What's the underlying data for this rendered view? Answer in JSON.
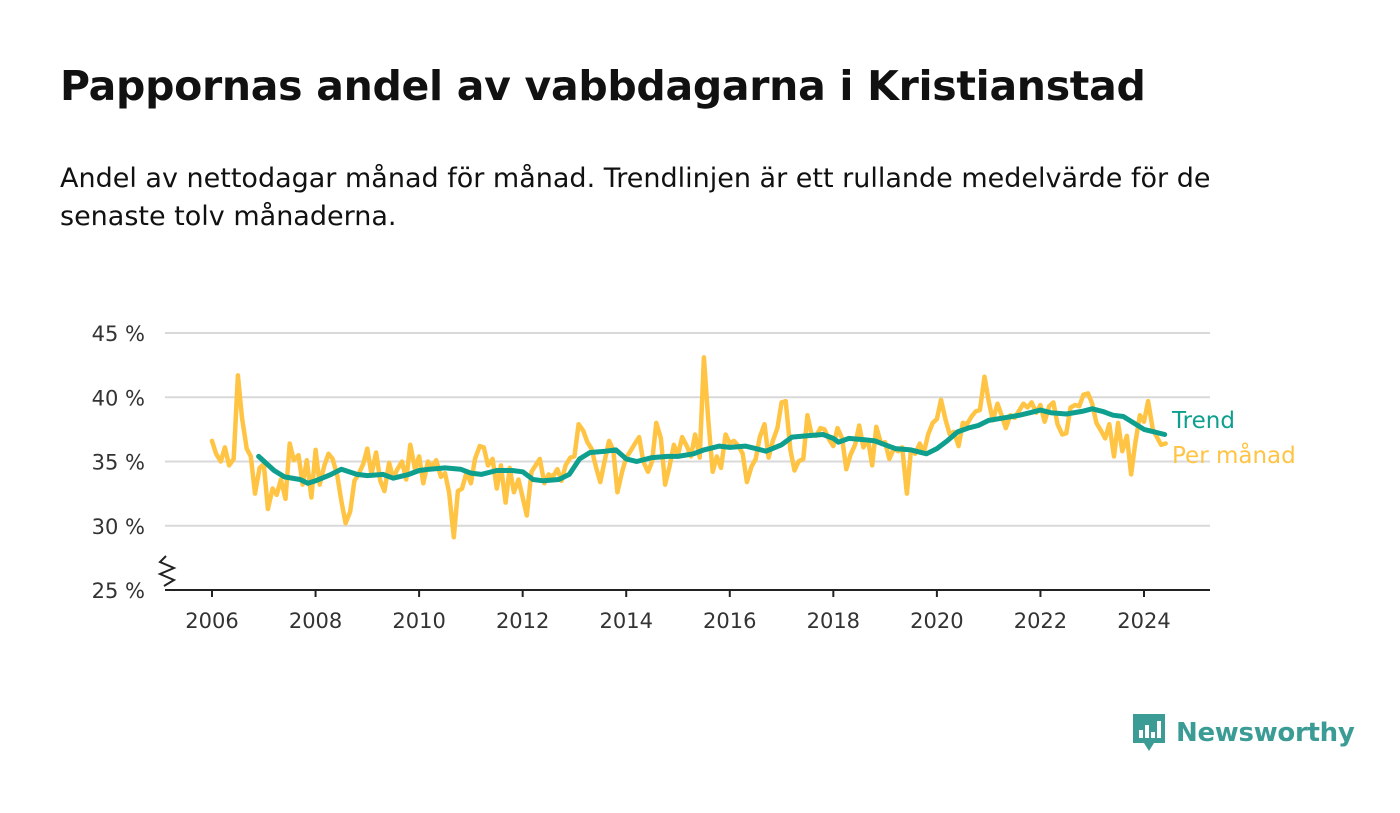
{
  "title": "Pappornas andel av vabbdagarna i Kristianstad",
  "subtitle": "Andel av nettodagar månad för månad. Trendlinjen är ett rullande medelvärde för de senaste tolv månaderna.",
  "brand": {
    "name": "Newsworthy",
    "icon": "newsworthy-logo-icon",
    "color": "#3a9c94"
  },
  "chart_data": {
    "type": "line",
    "title": "Pappornas andel av vabbdagarna i Kristianstad",
    "xlabel": "",
    "ylabel": "",
    "xlim": [
      2005.7,
      2025.25
    ],
    "ylim": [
      25,
      45
    ],
    "x_ticks": [
      2006,
      2008,
      2010,
      2012,
      2014,
      2016,
      2018,
      2020,
      2022,
      2024
    ],
    "x_tick_labels": [
      "2006",
      "2008",
      "2010",
      "2012",
      "2014",
      "2016",
      "2018",
      "2020",
      "2022",
      "2024"
    ],
    "y_ticks": [
      25,
      30,
      35,
      40,
      45
    ],
    "y_tick_labels": [
      "25 %",
      "30 %",
      "35 %",
      "40 %",
      "45 %"
    ],
    "y_axis_break": true,
    "grid": "horizontal",
    "legend": "right-end labels",
    "series": [
      {
        "name": "Trend",
        "color": "#0e9f8e",
        "points": [
          [
            2006.9,
            35.4
          ],
          [
            2007.2,
            34.3
          ],
          [
            2007.4,
            33.8
          ],
          [
            2007.7,
            33.6
          ],
          [
            2007.85,
            33.3
          ],
          [
            2008.0,
            33.5
          ],
          [
            2008.3,
            34.0
          ],
          [
            2008.5,
            34.4
          ],
          [
            2008.8,
            34.0
          ],
          [
            2009.0,
            33.9
          ],
          [
            2009.3,
            34.0
          ],
          [
            2009.5,
            33.7
          ],
          [
            2009.8,
            34.0
          ],
          [
            2010.0,
            34.3
          ],
          [
            2010.2,
            34.4
          ],
          [
            2010.5,
            34.5
          ],
          [
            2010.8,
            34.4
          ],
          [
            2011.0,
            34.1
          ],
          [
            2011.2,
            34.0
          ],
          [
            2011.5,
            34.3
          ],
          [
            2011.8,
            34.3
          ],
          [
            2012.0,
            34.2
          ],
          [
            2012.2,
            33.6
          ],
          [
            2012.4,
            33.5
          ],
          [
            2012.7,
            33.6
          ],
          [
            2012.9,
            34.0
          ],
          [
            2013.1,
            35.2
          ],
          [
            2013.3,
            35.7
          ],
          [
            2013.6,
            35.8
          ],
          [
            2013.8,
            35.9
          ],
          [
            2014.0,
            35.2
          ],
          [
            2014.2,
            35.0
          ],
          [
            2014.5,
            35.3
          ],
          [
            2014.8,
            35.4
          ],
          [
            2015.0,
            35.4
          ],
          [
            2015.3,
            35.6
          ],
          [
            2015.5,
            35.9
          ],
          [
            2015.8,
            36.2
          ],
          [
            2016.0,
            36.1
          ],
          [
            2016.3,
            36.2
          ],
          [
            2016.5,
            36.0
          ],
          [
            2016.7,
            35.8
          ],
          [
            2017.0,
            36.3
          ],
          [
            2017.2,
            36.9
          ],
          [
            2017.5,
            37.0
          ],
          [
            2017.8,
            37.1
          ],
          [
            2018.0,
            36.8
          ],
          [
            2018.1,
            36.5
          ],
          [
            2018.3,
            36.8
          ],
          [
            2018.6,
            36.7
          ],
          [
            2018.8,
            36.6
          ],
          [
            2019.0,
            36.3
          ],
          [
            2019.2,
            36.0
          ],
          [
            2019.5,
            35.9
          ],
          [
            2019.8,
            35.6
          ],
          [
            2020.0,
            36.0
          ],
          [
            2020.2,
            36.6
          ],
          [
            2020.4,
            37.3
          ],
          [
            2020.6,
            37.6
          ],
          [
            2020.8,
            37.8
          ],
          [
            2021.0,
            38.2
          ],
          [
            2021.3,
            38.4
          ],
          [
            2021.6,
            38.6
          ],
          [
            2021.8,
            38.8
          ],
          [
            2022.0,
            39.0
          ],
          [
            2022.2,
            38.8
          ],
          [
            2022.5,
            38.7
          ],
          [
            2022.8,
            38.9
          ],
          [
            2023.0,
            39.1
          ],
          [
            2023.2,
            38.9
          ],
          [
            2023.4,
            38.6
          ],
          [
            2023.6,
            38.5
          ],
          [
            2023.8,
            38.0
          ],
          [
            2024.0,
            37.5
          ],
          [
            2024.2,
            37.3
          ],
          [
            2024.4,
            37.1
          ]
        ]
      },
      {
        "name": "Per månad",
        "color": "#ffc443",
        "points": [
          [
            2006.0,
            36.6
          ],
          [
            2006.08,
            35.6
          ],
          [
            2006.17,
            35.0
          ],
          [
            2006.25,
            36.1
          ],
          [
            2006.33,
            34.7
          ],
          [
            2006.42,
            35.2
          ],
          [
            2006.5,
            41.7
          ],
          [
            2006.58,
            38.4
          ],
          [
            2006.67,
            36.0
          ],
          [
            2006.75,
            35.4
          ],
          [
            2006.83,
            32.5
          ],
          [
            2006.92,
            34.5
          ],
          [
            2007.0,
            34.8
          ],
          [
            2007.08,
            31.3
          ],
          [
            2007.17,
            32.9
          ],
          [
            2007.25,
            32.4
          ],
          [
            2007.33,
            33.6
          ],
          [
            2007.42,
            32.1
          ],
          [
            2007.5,
            36.4
          ],
          [
            2007.58,
            35.1
          ],
          [
            2007.67,
            35.5
          ],
          [
            2007.75,
            33.2
          ],
          [
            2007.83,
            35.1
          ],
          [
            2007.92,
            32.2
          ],
          [
            2008.0,
            35.9
          ],
          [
            2008.08,
            33.2
          ],
          [
            2008.17,
            34.7
          ],
          [
            2008.25,
            35.6
          ],
          [
            2008.33,
            35.2
          ],
          [
            2008.42,
            33.9
          ],
          [
            2008.5,
            31.9
          ],
          [
            2008.58,
            30.2
          ],
          [
            2008.67,
            31.1
          ],
          [
            2008.75,
            33.5
          ],
          [
            2008.83,
            34.0
          ],
          [
            2008.92,
            34.8
          ],
          [
            2009.0,
            36.0
          ],
          [
            2009.08,
            34.0
          ],
          [
            2009.17,
            35.7
          ],
          [
            2009.25,
            33.5
          ],
          [
            2009.33,
            32.7
          ],
          [
            2009.42,
            34.9
          ],
          [
            2009.5,
            33.7
          ],
          [
            2009.58,
            34.4
          ],
          [
            2009.67,
            35.0
          ],
          [
            2009.75,
            33.6
          ],
          [
            2009.83,
            36.3
          ],
          [
            2009.92,
            34.4
          ],
          [
            2010.0,
            35.4
          ],
          [
            2010.08,
            33.3
          ],
          [
            2010.17,
            35.0
          ],
          [
            2010.25,
            34.6
          ],
          [
            2010.33,
            35.1
          ],
          [
            2010.42,
            33.8
          ],
          [
            2010.5,
            34.1
          ],
          [
            2010.58,
            32.6
          ],
          [
            2010.67,
            29.1
          ],
          [
            2010.75,
            32.7
          ],
          [
            2010.83,
            32.9
          ],
          [
            2010.92,
            34.2
          ],
          [
            2011.0,
            33.3
          ],
          [
            2011.08,
            35.2
          ],
          [
            2011.17,
            36.2
          ],
          [
            2011.25,
            36.1
          ],
          [
            2011.33,
            34.7
          ],
          [
            2011.42,
            35.2
          ],
          [
            2011.5,
            32.9
          ],
          [
            2011.58,
            34.7
          ],
          [
            2011.67,
            31.8
          ],
          [
            2011.75,
            34.5
          ],
          [
            2011.83,
            32.6
          ],
          [
            2011.92,
            33.6
          ],
          [
            2012.0,
            32.2
          ],
          [
            2012.08,
            30.8
          ],
          [
            2012.17,
            34.2
          ],
          [
            2012.25,
            34.7
          ],
          [
            2012.33,
            35.2
          ],
          [
            2012.42,
            33.3
          ],
          [
            2012.5,
            34.0
          ],
          [
            2012.58,
            33.8
          ],
          [
            2012.67,
            34.4
          ],
          [
            2012.75,
            33.5
          ],
          [
            2012.83,
            34.7
          ],
          [
            2012.92,
            35.3
          ],
          [
            2013.0,
            35.4
          ],
          [
            2013.08,
            37.9
          ],
          [
            2013.17,
            37.4
          ],
          [
            2013.25,
            36.5
          ],
          [
            2013.33,
            36.0
          ],
          [
            2013.42,
            34.5
          ],
          [
            2013.5,
            33.4
          ],
          [
            2013.58,
            35.0
          ],
          [
            2013.67,
            36.6
          ],
          [
            2013.75,
            35.9
          ],
          [
            2013.83,
            32.6
          ],
          [
            2013.92,
            34.2
          ],
          [
            2014.0,
            35.3
          ],
          [
            2014.08,
            35.8
          ],
          [
            2014.17,
            36.4
          ],
          [
            2014.25,
            36.9
          ],
          [
            2014.33,
            35.0
          ],
          [
            2014.42,
            34.2
          ],
          [
            2014.5,
            35.0
          ],
          [
            2014.58,
            38.0
          ],
          [
            2014.67,
            36.8
          ],
          [
            2014.75,
            33.2
          ],
          [
            2014.83,
            34.5
          ],
          [
            2014.92,
            36.3
          ],
          [
            2015.0,
            35.5
          ],
          [
            2015.08,
            36.9
          ],
          [
            2015.17,
            36.2
          ],
          [
            2015.25,
            35.4
          ],
          [
            2015.33,
            37.1
          ],
          [
            2015.42,
            35.3
          ],
          [
            2015.5,
            43.1
          ],
          [
            2015.58,
            38.5
          ],
          [
            2015.67,
            34.2
          ],
          [
            2015.75,
            35.4
          ],
          [
            2015.83,
            34.5
          ],
          [
            2015.92,
            37.1
          ],
          [
            2016.0,
            36.4
          ],
          [
            2016.08,
            36.6
          ],
          [
            2016.17,
            36.2
          ],
          [
            2016.25,
            35.6
          ],
          [
            2016.33,
            33.4
          ],
          [
            2016.42,
            34.6
          ],
          [
            2016.5,
            35.2
          ],
          [
            2016.58,
            36.9
          ],
          [
            2016.67,
            37.9
          ],
          [
            2016.75,
            35.3
          ],
          [
            2016.83,
            36.6
          ],
          [
            2016.92,
            37.6
          ],
          [
            2017.0,
            39.6
          ],
          [
            2017.08,
            39.7
          ],
          [
            2017.17,
            35.9
          ],
          [
            2017.25,
            34.3
          ],
          [
            2017.33,
            35.0
          ],
          [
            2017.42,
            35.2
          ],
          [
            2017.5,
            38.6
          ],
          [
            2017.58,
            37.1
          ],
          [
            2017.67,
            37.0
          ],
          [
            2017.75,
            37.6
          ],
          [
            2017.83,
            37.5
          ],
          [
            2017.92,
            36.7
          ],
          [
            2018.0,
            36.2
          ],
          [
            2018.08,
            37.6
          ],
          [
            2018.17,
            36.8
          ],
          [
            2018.25,
            34.4
          ],
          [
            2018.33,
            35.5
          ],
          [
            2018.42,
            36.3
          ],
          [
            2018.5,
            37.8
          ],
          [
            2018.58,
            36.1
          ],
          [
            2018.67,
            36.7
          ],
          [
            2018.75,
            34.7
          ],
          [
            2018.83,
            37.7
          ],
          [
            2018.92,
            36.4
          ],
          [
            2019.0,
            36.5
          ],
          [
            2019.08,
            35.2
          ],
          [
            2019.17,
            36.0
          ],
          [
            2019.25,
            35.8
          ],
          [
            2019.33,
            36.1
          ],
          [
            2019.42,
            32.5
          ],
          [
            2019.5,
            35.9
          ],
          [
            2019.58,
            35.6
          ],
          [
            2019.67,
            36.4
          ],
          [
            2019.75,
            35.7
          ],
          [
            2019.83,
            37.1
          ],
          [
            2019.92,
            38.0
          ],
          [
            2020.0,
            38.3
          ],
          [
            2020.08,
            39.8
          ],
          [
            2020.17,
            38.2
          ],
          [
            2020.25,
            37.1
          ],
          [
            2020.33,
            37.3
          ],
          [
            2020.42,
            36.2
          ],
          [
            2020.5,
            38.0
          ],
          [
            2020.58,
            37.9
          ],
          [
            2020.67,
            38.5
          ],
          [
            2020.75,
            38.9
          ],
          [
            2020.83,
            39.0
          ],
          [
            2020.92,
            41.6
          ],
          [
            2021.0,
            39.7
          ],
          [
            2021.08,
            38.2
          ],
          [
            2021.17,
            39.5
          ],
          [
            2021.25,
            38.6
          ],
          [
            2021.33,
            37.6
          ],
          [
            2021.42,
            38.6
          ],
          [
            2021.5,
            38.4
          ],
          [
            2021.58,
            38.9
          ],
          [
            2021.67,
            39.5
          ],
          [
            2021.75,
            39.2
          ],
          [
            2021.83,
            39.6
          ],
          [
            2021.92,
            38.8
          ],
          [
            2022.0,
            39.4
          ],
          [
            2022.08,
            38.1
          ],
          [
            2022.17,
            39.3
          ],
          [
            2022.25,
            39.6
          ],
          [
            2022.33,
            37.9
          ],
          [
            2022.42,
            37.1
          ],
          [
            2022.5,
            37.2
          ],
          [
            2022.58,
            39.2
          ],
          [
            2022.67,
            39.4
          ],
          [
            2022.75,
            39.3
          ],
          [
            2022.83,
            40.2
          ],
          [
            2022.92,
            40.3
          ],
          [
            2023.0,
            39.5
          ],
          [
            2023.08,
            38.0
          ],
          [
            2023.17,
            37.4
          ],
          [
            2023.25,
            36.8
          ],
          [
            2023.33,
            37.9
          ],
          [
            2023.42,
            35.4
          ],
          [
            2023.5,
            38.0
          ],
          [
            2023.58,
            35.8
          ],
          [
            2023.67,
            37.0
          ],
          [
            2023.75,
            34.0
          ],
          [
            2023.83,
            36.4
          ],
          [
            2023.92,
            38.6
          ],
          [
            2024.0,
            38.1
          ],
          [
            2024.08,
            39.7
          ],
          [
            2024.17,
            37.5
          ],
          [
            2024.25,
            36.9
          ],
          [
            2024.33,
            36.3
          ],
          [
            2024.42,
            36.4
          ]
        ]
      }
    ]
  }
}
